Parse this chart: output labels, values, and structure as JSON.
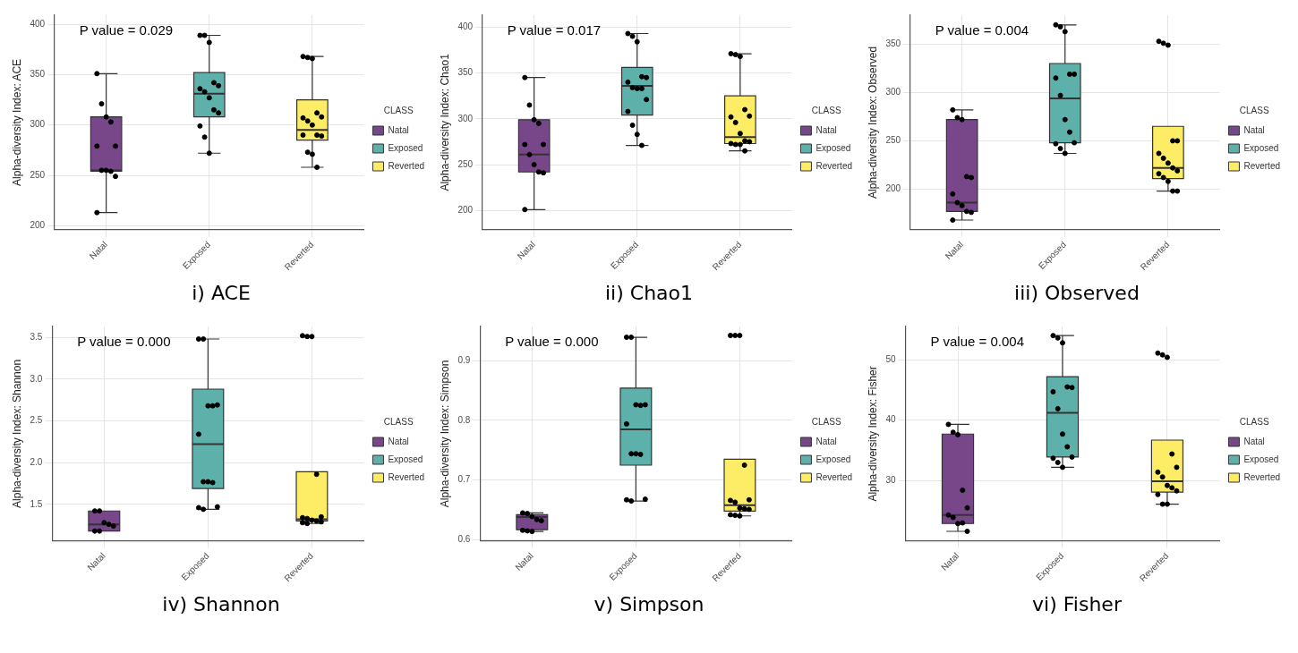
{
  "chart_data": [
    {
      "type": "box",
      "title": "i) ACE",
      "ylabel": "Alpha-diversity Index: ACE",
      "legend_title": "CLASS",
      "legend": "right",
      "grid": true,
      "categories": [
        "Natal",
        "Exposed",
        "Reverted"
      ],
      "ylim": [
        196,
        409
      ],
      "yticks": [
        200,
        250,
        300,
        350,
        400
      ],
      "annotations": [
        "P value = 0.029"
      ],
      "series": [
        {
          "name": "Natal",
          "color": "#77478a",
          "boxes": [
            {
              "low": 213,
              "q1": 254,
              "median": 255,
              "q3": 308,
              "high": 351
            },
            null,
            null
          ]
        },
        {
          "name": "Exposed",
          "color": "#5eb0ab",
          "boxes": [
            null,
            {
              "low": 272,
              "q1": 308,
              "median": 331,
              "q3": 352,
              "high": 389
            },
            null
          ]
        },
        {
          "name": "Reverted",
          "color": "#fded66",
          "boxes": [
            null,
            null,
            {
              "low": 258,
              "q1": 285,
              "median": 295,
              "q3": 325,
              "high": 368
            }
          ]
        },
        {
          "type": "scatter",
          "color": "#000000",
          "x": [
            "Natal",
            "Natal",
            "Natal",
            "Natal",
            "Natal",
            "Natal",
            "Natal",
            "Natal",
            "Natal",
            "Natal",
            "Natal",
            "Exposed",
            "Exposed",
            "Exposed",
            "Exposed",
            "Exposed",
            "Exposed",
            "Exposed",
            "Exposed",
            "Exposed",
            "Exposed",
            "Exposed",
            "Exposed",
            "Exposed",
            "Reverted",
            "Reverted",
            "Reverted",
            "Reverted",
            "Reverted",
            "Reverted",
            "Reverted",
            "Reverted",
            "Reverted",
            "Reverted",
            "Reverted",
            "Reverted",
            "Reverted",
            "Reverted"
          ],
          "values": [
            351,
            321,
            308,
            303,
            279,
            279,
            255,
            255,
            254,
            249,
            213,
            389,
            389,
            382,
            342,
            339,
            336,
            333,
            327,
            315,
            312,
            299,
            288,
            272,
            368,
            367,
            366,
            312,
            308,
            307,
            304,
            300,
            290,
            289,
            290,
            273,
            271,
            258
          ]
        }
      ]
    },
    {
      "type": "box",
      "title": "ii) Chao1",
      "ylabel": "Alpha-diversity Index: Chao1",
      "legend_title": "CLASS",
      "legend": "right",
      "grid": true,
      "categories": [
        "Natal",
        "Exposed",
        "Reverted"
      ],
      "ylim": [
        179,
        413
      ],
      "yticks": [
        200,
        250,
        300,
        350,
        400
      ],
      "annotations": [
        "P value = 0.017"
      ],
      "series": [
        {
          "name": "Natal",
          "color": "#77478a",
          "boxes": [
            {
              "low": 201,
              "q1": 242,
              "median": 261,
              "q3": 299,
              "high": 345
            },
            null,
            null
          ]
        },
        {
          "name": "Exposed",
          "color": "#5eb0ab",
          "boxes": [
            null,
            {
              "low": 271,
              "q1": 304,
              "median": 336,
              "q3": 356,
              "high": 393
            },
            null
          ]
        },
        {
          "name": "Reverted",
          "color": "#fded66",
          "boxes": [
            null,
            null,
            {
              "low": 265,
              "q1": 273,
              "median": 280,
              "q3": 325,
              "high": 371
            }
          ]
        },
        {
          "type": "scatter",
          "color": "#000000",
          "x": [
            "Natal",
            "Natal",
            "Natal",
            "Natal",
            "Natal",
            "Natal",
            "Natal",
            "Natal",
            "Natal",
            "Natal",
            "Natal",
            "Exposed",
            "Exposed",
            "Exposed",
            "Exposed",
            "Exposed",
            "Exposed",
            "Exposed",
            "Exposed",
            "Exposed",
            "Exposed",
            "Exposed",
            "Exposed",
            "Exposed",
            "Exposed",
            "Reverted",
            "Reverted",
            "Reverted",
            "Reverted",
            "Reverted",
            "Reverted",
            "Reverted",
            "Reverted",
            "Reverted",
            "Reverted",
            "Reverted",
            "Reverted",
            "Reverted",
            "Reverted"
          ],
          "values": [
            345,
            315,
            299,
            295,
            272,
            272,
            261,
            250,
            242,
            241,
            201,
            393,
            390,
            384,
            346,
            345,
            340,
            334,
            333,
            333,
            321,
            308,
            293,
            283,
            271,
            371,
            370,
            368,
            310,
            303,
            302,
            296,
            284,
            276,
            275,
            273,
            272,
            272,
            265
          ]
        }
      ]
    },
    {
      "type": "box",
      "title": "iii) Observed",
      "ylabel": "Alpha-diversity Index: Observed",
      "legend_title": "CLASS",
      "legend": "right",
      "grid": true,
      "categories": [
        "Natal",
        "Exposed",
        "Reverted"
      ],
      "ylim": [
        158,
        380
      ],
      "yticks": [
        200,
        250,
        300,
        350
      ],
      "annotations": [
        "P value = 0.004"
      ],
      "series": [
        {
          "name": "Natal",
          "color": "#77478a",
          "boxes": [
            {
              "low": 168,
              "q1": 177,
              "median": 186,
              "q3": 272,
              "high": 282
            },
            null,
            null
          ]
        },
        {
          "name": "Exposed",
          "color": "#5eb0ab",
          "boxes": [
            null,
            {
              "low": 237,
              "q1": 248,
              "median": 294,
              "q3": 330,
              "high": 370
            },
            null
          ]
        },
        {
          "name": "Reverted",
          "color": "#fded66",
          "boxes": [
            null,
            null,
            {
              "low": 198,
              "q1": 211,
              "median": 222,
              "q3": 265,
              "high": 265
            }
          ]
        },
        {
          "type": "scatter",
          "color": "#000000",
          "x": [
            "Natal",
            "Natal",
            "Natal",
            "Natal",
            "Natal",
            "Natal",
            "Natal",
            "Natal",
            "Natal",
            "Natal",
            "Natal",
            "Exposed",
            "Exposed",
            "Exposed",
            "Exposed",
            "Exposed",
            "Exposed",
            "Exposed",
            "Exposed",
            "Exposed",
            "Exposed",
            "Exposed",
            "Exposed",
            "Exposed",
            "Reverted",
            "Reverted",
            "Reverted",
            "Reverted",
            "Reverted",
            "Reverted",
            "Reverted",
            "Reverted",
            "Reverted",
            "Reverted",
            "Reverted",
            "Reverted",
            "Reverted",
            "Reverted",
            "Reverted"
          ],
          "values": [
            282,
            274,
            272,
            213,
            212,
            195,
            186,
            183,
            177,
            176,
            168,
            370,
            368,
            363,
            319,
            319,
            315,
            297,
            272,
            259,
            248,
            247,
            242,
            237,
            353,
            351,
            349,
            250,
            250,
            237,
            232,
            227,
            222,
            219,
            216,
            212,
            208,
            198,
            198
          ]
        }
      ]
    },
    {
      "type": "box",
      "title": "iv) Shannon",
      "ylabel": "Alpha-diversity Index: Shannon",
      "legend_title": "CLASS",
      "legend": "right",
      "grid": true,
      "categories": [
        "Natal",
        "Exposed",
        "Reverted"
      ],
      "ylim": [
        1.06,
        3.63
      ],
      "yticks": [
        1.5,
        {
          "value": 2,
          "label": "2.0"
        },
        2.5,
        {
          "value": 3,
          "label": "3.0"
        },
        3.5
      ],
      "annotations": [
        "P value = 0.000"
      ],
      "series": [
        {
          "name": "Natal",
          "color": "#77478a",
          "boxes": [
            {
              "low": 1.18,
              "q1": 1.18,
              "median": 1.26,
              "q3": 1.42,
              "high": 1.42
            },
            null,
            null
          ]
        },
        {
          "name": "Exposed",
          "color": "#5eb0ab",
          "boxes": [
            null,
            {
              "low": 1.44,
              "q1": 1.69,
              "median": 2.22,
              "q3": 2.88,
              "high": 3.48
            },
            null
          ]
        },
        {
          "name": "Reverted",
          "color": "#fded66",
          "boxes": [
            null,
            null,
            {
              "low": 1.27,
              "q1": 1.3,
              "median": 1.32,
              "q3": 1.89,
              "high": 1.89
            }
          ]
        },
        {
          "type": "scatter",
          "color": "#000000",
          "x": [
            "Natal",
            "Natal",
            "Natal",
            "Natal",
            "Natal",
            "Natal",
            "Natal",
            "Exposed",
            "Exposed",
            "Exposed",
            "Exposed",
            "Exposed",
            "Exposed",
            "Exposed",
            "Exposed",
            "Exposed",
            "Exposed",
            "Exposed",
            "Exposed",
            "Reverted",
            "Reverted",
            "Reverted",
            "Reverted",
            "Reverted",
            "Reverted",
            "Reverted",
            "Reverted",
            "Reverted",
            "Reverted",
            "Reverted",
            "Reverted"
          ],
          "values": [
            1.42,
            1.42,
            1.28,
            1.26,
            1.24,
            1.18,
            1.18,
            3.48,
            3.48,
            2.68,
            2.68,
            2.69,
            2.34,
            1.77,
            1.77,
            1.76,
            1.47,
            1.46,
            1.44,
            3.52,
            3.51,
            3.51,
            1.86,
            1.35,
            1.34,
            1.33,
            1.31,
            1.3,
            1.29,
            1.28,
            1.27
          ]
        }
      ]
    },
    {
      "type": "box",
      "title": "v) Simpson",
      "ylabel": "Alpha-diversity Index: Simpson",
      "legend_title": "CLASS",
      "legend": "right",
      "grid": true,
      "categories": [
        "Natal",
        "Exposed",
        "Reverted"
      ],
      "ylim": [
        0.598,
        0.957
      ],
      "yticks": [
        0.6,
        0.7,
        0.8,
        0.9
      ],
      "annotations": [
        "P value = 0.000"
      ],
      "series": [
        {
          "name": "Natal",
          "color": "#77478a",
          "boxes": [
            {
              "low": 0.614,
              "q1": 0.617,
              "median": 0.638,
              "q3": 0.642,
              "high": 0.645
            },
            null,
            null
          ]
        },
        {
          "name": "Exposed",
          "color": "#5eb0ab",
          "boxes": [
            null,
            {
              "low": 0.665,
              "q1": 0.725,
              "median": 0.785,
              "q3": 0.854,
              "high": 0.939
            },
            null
          ]
        },
        {
          "name": "Reverted",
          "color": "#fded66",
          "boxes": [
            null,
            null,
            {
              "low": 0.64,
              "q1": 0.648,
              "median": 0.658,
              "q3": 0.735,
              "high": 0.735
            }
          ]
        },
        {
          "type": "scatter",
          "color": "#000000",
          "x": [
            "Natal",
            "Natal",
            "Natal",
            "Natal",
            "Natal",
            "Natal",
            "Natal",
            "Natal",
            "Exposed",
            "Exposed",
            "Exposed",
            "Exposed",
            "Exposed",
            "Exposed",
            "Exposed",
            "Exposed",
            "Exposed",
            "Exposed",
            "Exposed",
            "Exposed",
            "Reverted",
            "Reverted",
            "Reverted",
            "Reverted",
            "Reverted",
            "Reverted",
            "Reverted",
            "Reverted",
            "Reverted",
            "Reverted",
            "Reverted",
            "Reverted",
            "Reverted"
          ],
          "values": [
            0.645,
            0.644,
            0.639,
            0.634,
            0.632,
            0.616,
            0.615,
            0.614,
            0.939,
            0.939,
            0.826,
            0.825,
            0.826,
            0.794,
            0.744,
            0.744,
            0.743,
            0.668,
            0.667,
            0.665,
            0.942,
            0.942,
            0.942,
            0.725,
            0.667,
            0.666,
            0.663,
            0.653,
            0.652,
            0.651,
            0.642,
            0.641,
            0.64
          ]
        }
      ]
    },
    {
      "type": "box",
      "title": "vi) Fisher",
      "ylabel": "Alpha-diversity Index: Fisher",
      "legend_title": "CLASS",
      "legend": "right",
      "grid": true,
      "categories": [
        "Natal",
        "Exposed",
        "Reverted"
      ],
      "ylim": [
        20,
        55.5
      ],
      "yticks": [
        30,
        40,
        50
      ],
      "annotations": [
        "P value = 0.004"
      ],
      "series": [
        {
          "name": "Natal",
          "color": "#77478a",
          "boxes": [
            {
              "low": 21.6,
              "q1": 22.9,
              "median": 24.3,
              "q3": 37.7,
              "high": 39.3
            },
            null,
            null
          ]
        },
        {
          "name": "Exposed",
          "color": "#5eb0ab",
          "boxes": [
            null,
            {
              "low": 32.2,
              "q1": 33.9,
              "median": 41.2,
              "q3": 47.2,
              "high": 54
            },
            null
          ]
        },
        {
          "name": "Reverted",
          "color": "#fded66",
          "boxes": [
            null,
            null,
            {
              "low": 26.1,
              "q1": 28.1,
              "median": 29.9,
              "q3": 36.7,
              "high": 36.7
            }
          ]
        },
        {
          "type": "scatter",
          "color": "#000000",
          "x": [
            "Natal",
            "Natal",
            "Natal",
            "Natal",
            "Natal",
            "Natal",
            "Natal",
            "Natal",
            "Natal",
            "Natal",
            "Exposed",
            "Exposed",
            "Exposed",
            "Exposed",
            "Exposed",
            "Exposed",
            "Exposed",
            "Exposed",
            "Exposed",
            "Exposed",
            "Exposed",
            "Exposed",
            "Exposed",
            "Reverted",
            "Reverted",
            "Reverted",
            "Reverted",
            "Reverted",
            "Reverted",
            "Reverted",
            "Reverted",
            "Reverted",
            "Reverted",
            "Reverted",
            "Reverted",
            "Reverted"
          ],
          "values": [
            39.3,
            38,
            37.6,
            28.4,
            25.5,
            24.3,
            23.9,
            22.9,
            23,
            21.6,
            54,
            53.6,
            52.8,
            45.5,
            45.4,
            44.7,
            41.9,
            37.7,
            35.6,
            33.9,
            33.7,
            33,
            32.2,
            51.1,
            50.8,
            50.4,
            34.4,
            32.2,
            31.4,
            30.6,
            29.2,
            28.8,
            28.3,
            27.7,
            26.1,
            26.1
          ]
        }
      ]
    }
  ]
}
